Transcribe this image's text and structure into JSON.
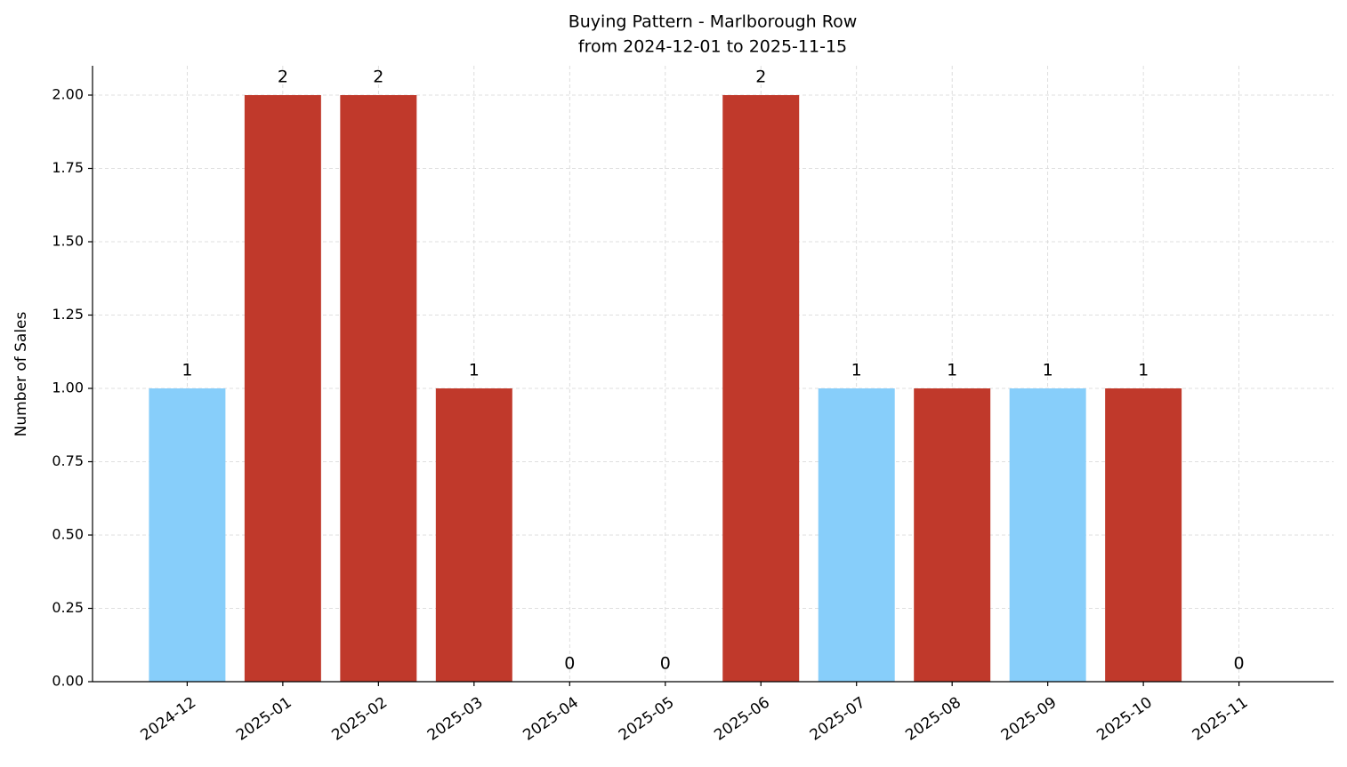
{
  "chart_data": {
    "type": "bar",
    "title": "Buying Pattern - Marlborough Row",
    "subtitle": "from 2024-12-01 to 2025-11-15",
    "y_label": "Number of Sales",
    "categories": [
      "2024-12",
      "2025-01",
      "2025-02",
      "2025-03",
      "2025-04",
      "2025-05",
      "2025-06",
      "2025-07",
      "2025-08",
      "2025-09",
      "2025-10",
      "2025-11"
    ],
    "values": [
      1,
      2,
      2,
      1,
      0,
      0,
      2,
      1,
      1,
      1,
      1,
      0
    ],
    "colors": [
      "#87cefa",
      "#c0392b",
      "#c0392b",
      "#c0392b",
      "#c0392b",
      "#c0392b",
      "#c0392b",
      "#87cefa",
      "#c0392b",
      "#87cefa",
      "#c0392b",
      "#c0392b"
    ],
    "ylim": [
      0,
      2.1
    ],
    "yticks": [
      {
        "value": 0,
        "label": "0.00"
      },
      {
        "value": 0.25,
        "label": "0.25"
      },
      {
        "value": 0.5,
        "label": "0.50"
      },
      {
        "value": 0.75,
        "label": "0.75"
      },
      {
        "value": 1,
        "label": "1.00"
      },
      {
        "value": 1.25,
        "label": "1.25"
      },
      {
        "value": 1.5,
        "label": "1.50"
      },
      {
        "value": 1.75,
        "label": "1.75"
      },
      {
        "value": 2,
        "label": "2.00"
      }
    ],
    "grid": true
  }
}
